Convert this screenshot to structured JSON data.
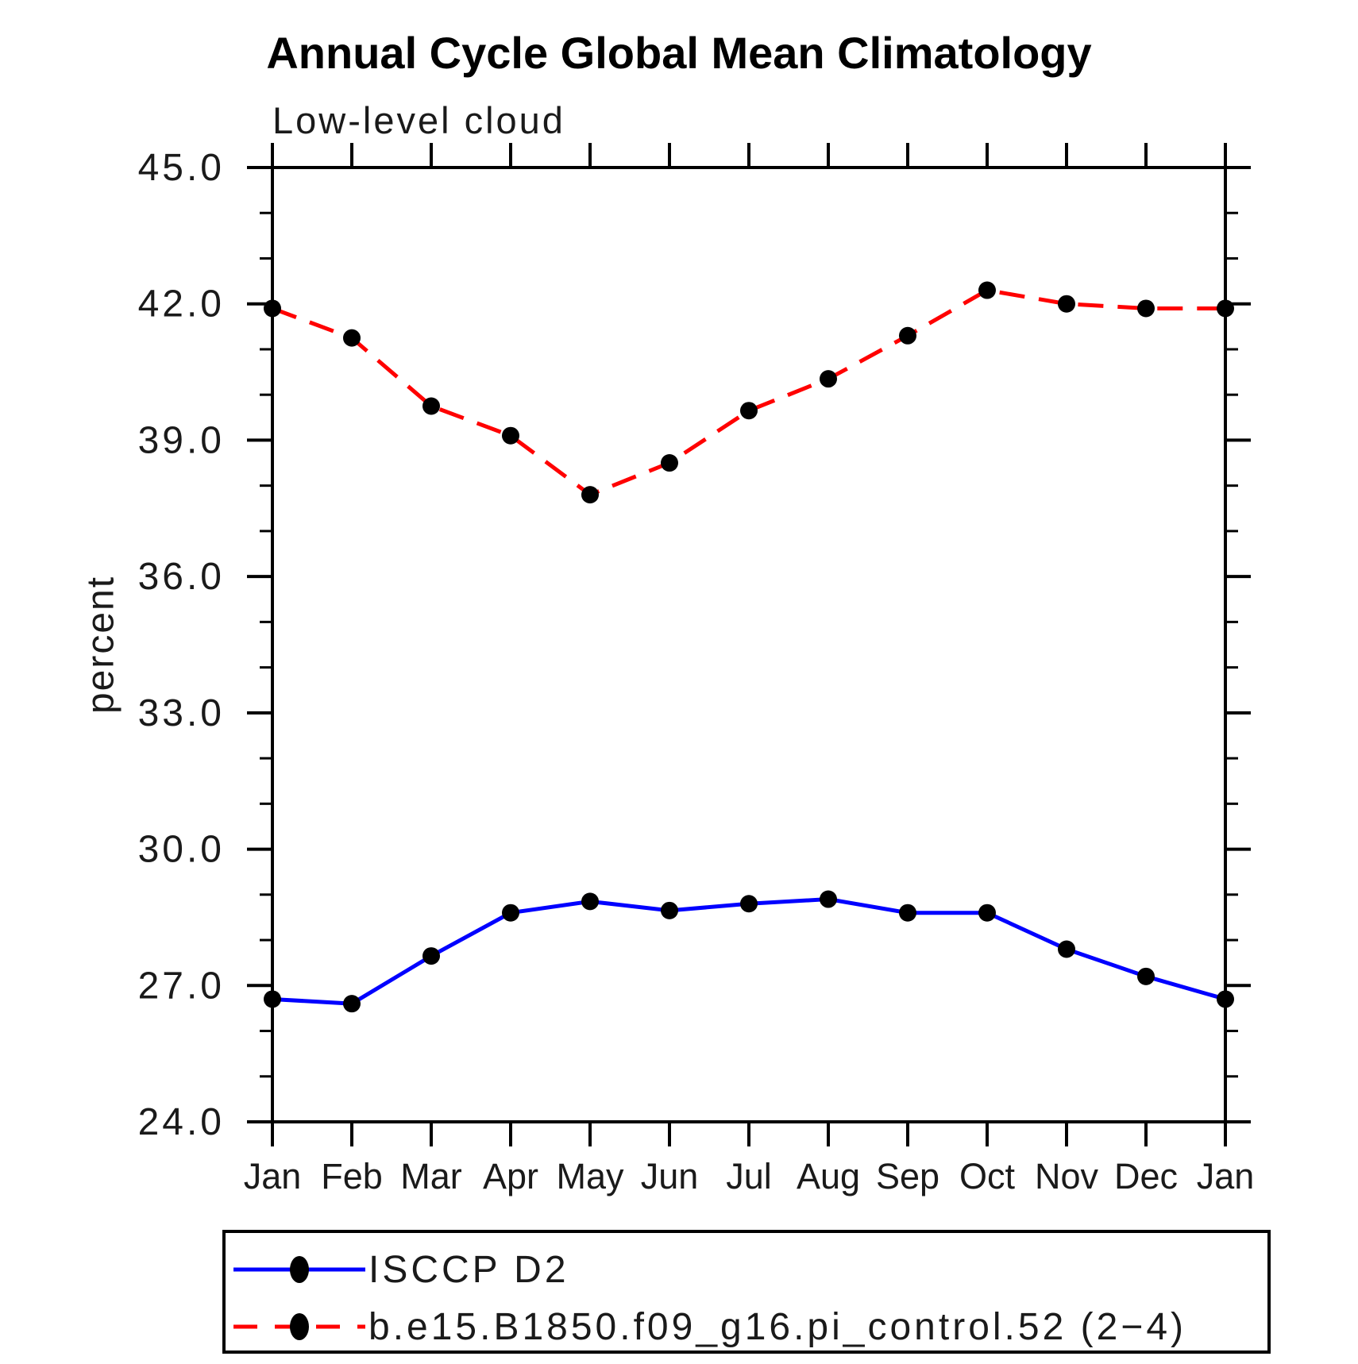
{
  "figure": {
    "title": "Annual Cycle Global Mean Climatology",
    "subtitle": "Low-level cloud"
  },
  "chart_data": {
    "type": "line",
    "title": "Annual Cycle Global Mean Climatology",
    "subtitle": "Low-level cloud",
    "xlabel": "",
    "ylabel": "percent",
    "categories": [
      "Jan",
      "Feb",
      "Mar",
      "Apr",
      "May",
      "Jun",
      "Jul",
      "Aug",
      "Sep",
      "Oct",
      "Nov",
      "Dec",
      "Jan"
    ],
    "ylim": [
      24.0,
      45.0
    ],
    "ytick_major_interval": 3.0,
    "ytick_minor_interval": 1.0,
    "ytick_labels": [
      "24.0",
      "27.0",
      "30.0",
      "33.0",
      "36.0",
      "39.0",
      "42.0",
      "45.0"
    ],
    "grid": false,
    "legend_position": "bottom-left box",
    "marker_color": "#000000",
    "series": [
      {
        "name": "ISCCP D2",
        "color": "#0000ff",
        "style": "solid",
        "marker": "filled-circle",
        "values": [
          26.7,
          26.6,
          27.65,
          28.6,
          28.85,
          28.65,
          28.8,
          28.9,
          28.6,
          28.6,
          27.8,
          27.2,
          26.7
        ]
      },
      {
        "name": "b.e15.B1850.f09_g16.pi_control.52 (2−4)",
        "color": "#ff0000",
        "style": "dashed",
        "marker": "filled-circle",
        "values": [
          41.9,
          41.25,
          39.75,
          39.1,
          37.8,
          38.5,
          39.65,
          40.35,
          41.3,
          42.3,
          42.0,
          41.9,
          41.9
        ]
      }
    ]
  }
}
